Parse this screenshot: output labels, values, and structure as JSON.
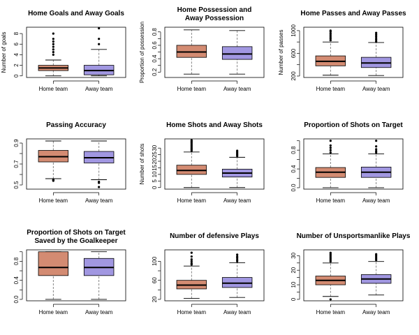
{
  "figure": {
    "background": "#ffffff",
    "home_color": "#d38b72",
    "away_color": "#a197e1"
  },
  "chart_data": [
    {
      "type": "box",
      "title": [
        "Home Goals and Away Goals"
      ],
      "ylabel": "Number of goals",
      "ylim": [
        -0.3,
        9.2
      ],
      "yticks": [
        0,
        2,
        4,
        6,
        8
      ],
      "categories": [
        "Home team",
        "Away team"
      ],
      "boxes": [
        {
          "min": 0,
          "q1": 1,
          "median": 1.5,
          "q3": 2,
          "max": 3,
          "outliers": [
            4,
            4.5,
            5,
            5.5,
            6,
            6.5,
            7,
            8
          ]
        },
        {
          "min": 0,
          "q1": 0.2,
          "median": 1,
          "q3": 2,
          "max": 5,
          "outliers": [
            6,
            7,
            9
          ]
        }
      ]
    },
    {
      "type": "box",
      "title": [
        "Home Possession and",
        "Away Possession"
      ],
      "ylabel": "Proportion of possession",
      "ylim": [
        0.12,
        0.87
      ],
      "yticks": [
        0.2,
        0.3,
        0.4,
        0.5,
        0.6,
        0.7,
        0.8
      ],
      "ytick_labels": [
        "0.2",
        "",
        "0.4",
        "",
        "0.6",
        "",
        "0.8"
      ],
      "categories": [
        "Home team",
        "Away team"
      ],
      "boxes": [
        {
          "min": 0.17,
          "q1": 0.42,
          "median": 0.5,
          "q3": 0.6,
          "max": 0.83,
          "outliers": []
        },
        {
          "min": 0.17,
          "q1": 0.39,
          "median": 0.47,
          "q3": 0.58,
          "max": 0.82,
          "outliers": []
        }
      ]
    },
    {
      "type": "box",
      "title": [
        "Home Passes and Away Passes"
      ],
      "ylabel": "Number of passes",
      "ylim": [
        175,
        1060
      ],
      "yticks": [
        200,
        400,
        600,
        800,
        1000
      ],
      "ytick_labels": [
        "200",
        "",
        "600",
        "",
        "1000"
      ],
      "categories": [
        "Home team",
        "Away team"
      ],
      "boxes": [
        {
          "min": 215,
          "q1": 380,
          "median": 460,
          "q3": 555,
          "max": 800,
          "outliers": [
            830,
            860,
            890,
            920,
            950,
            980,
            1000
          ]
        },
        {
          "min": 210,
          "q1": 350,
          "median": 430,
          "q3": 530,
          "max": 790,
          "outliers": [
            810,
            840,
            870,
            900,
            930,
            960
          ]
        }
      ]
    },
    {
      "type": "box",
      "title": [
        "Passing Accuracy"
      ],
      "ylabel": "",
      "ylim": [
        0.46,
        0.94
      ],
      "yticks": [
        0.5,
        0.6,
        0.7,
        0.8,
        0.9
      ],
      "ytick_labels": [
        "0.5",
        "",
        "0.7",
        "",
        "0.9"
      ],
      "categories": [
        "Home team",
        "Away team"
      ],
      "boxes": [
        {
          "min": 0.56,
          "q1": 0.72,
          "median": 0.77,
          "q3": 0.83,
          "max": 0.92,
          "outliers": [
            0.54,
            0.545,
            0.55
          ]
        },
        {
          "min": 0.55,
          "q1": 0.71,
          "median": 0.76,
          "q3": 0.82,
          "max": 0.92,
          "outliers": [
            0.48,
            0.52,
            0.53
          ]
        }
      ]
    },
    {
      "type": "box",
      "title": [
        "Home Shots and Away Shots"
      ],
      "ylabel": "Number of shots",
      "ylim": [
        -1.2,
        37
      ],
      "yticks": [
        0,
        5,
        10,
        15,
        20,
        25,
        30
      ],
      "categories": [
        "Home team",
        "Away team"
      ],
      "boxes": [
        {
          "min": 0,
          "q1": 10,
          "median": 13,
          "q3": 17,
          "max": 27,
          "outliers": [
            28,
            29,
            30,
            31,
            32,
            33,
            34,
            35,
            36
          ]
        },
        {
          "min": 0,
          "q1": 8,
          "median": 11,
          "q3": 14,
          "max": 23,
          "outliers": [
            24,
            25,
            26,
            27,
            28
          ]
        }
      ]
    },
    {
      "type": "box",
      "title": [
        "Proportion of Shots on Target"
      ],
      "ylabel": "",
      "ylim": [
        -0.03,
        1.04
      ],
      "yticks": [
        0,
        0.2,
        0.4,
        0.6,
        0.8,
        1.0
      ],
      "ytick_labels": [
        "0.0",
        "",
        "0.4",
        "",
        "0.8",
        ""
      ],
      "categories": [
        "Home team",
        "Away team"
      ],
      "boxes": [
        {
          "min": 0,
          "q1": 0.22,
          "median": 0.33,
          "q3": 0.43,
          "max": 0.72,
          "outliers": [
            0.75,
            0.8,
            0.85,
            0.9,
            1.0
          ]
        },
        {
          "min": 0,
          "q1": 0.22,
          "median": 0.33,
          "q3": 0.44,
          "max": 0.72,
          "outliers": [
            0.75,
            0.78,
            0.82,
            0.88,
            1.0
          ]
        }
      ]
    },
    {
      "type": "box",
      "title": [
        "Proportion of Shots on Target",
        "Saved by the Goalkeeper"
      ],
      "ylabel": "",
      "ylim": [
        -0.03,
        1.04
      ],
      "yticks": [
        0,
        0.2,
        0.4,
        0.6,
        0.8,
        1.0
      ],
      "ytick_labels": [
        "0.0",
        "",
        "0.4",
        "",
        "0.8",
        ""
      ],
      "categories": [
        "Home team",
        "Away team"
      ],
      "boxes": [
        {
          "min": 0,
          "q1": 0.5,
          "median": 0.67,
          "q3": 1.0,
          "max": 1.0,
          "outliers": []
        },
        {
          "min": 0,
          "q1": 0.5,
          "median": 0.67,
          "q3": 0.86,
          "max": 1.0,
          "outliers": []
        }
      ]
    },
    {
      "type": "box",
      "title": [
        "Number of defensive Plays"
      ],
      "ylabel": "",
      "ylim": [
        17,
        124
      ],
      "yticks": [
        20,
        40,
        60,
        80,
        100
      ],
      "ytick_labels": [
        "20",
        "",
        "60",
        "",
        "100"
      ],
      "categories": [
        "Home team",
        "Away team"
      ],
      "boxes": [
        {
          "min": 22,
          "q1": 42,
          "median": 50,
          "q3": 60,
          "max": 90,
          "outliers": [
            93,
            96,
            100,
            104,
            110,
            118
          ]
        },
        {
          "min": 24,
          "q1": 45,
          "median": 54,
          "q3": 66,
          "max": 97,
          "outliers": [
            100,
            103,
            107,
            110,
            114
          ]
        }
      ]
    },
    {
      "type": "box",
      "title": [
        "Number of Unsportsmanlike Plays"
      ],
      "ylabel": "",
      "ylim": [
        -1,
        34
      ],
      "yticks": [
        0,
        5,
        10,
        15,
        20,
        25,
        30
      ],
      "ytick_labels": [
        "0",
        "",
        "10",
        "",
        "20",
        "",
        "30"
      ],
      "categories": [
        "Home team",
        "Away team"
      ],
      "boxes": [
        {
          "min": 2,
          "q1": 10,
          "median": 13,
          "q3": 16,
          "max": 25,
          "outliers": [
            0,
            26,
            27,
            28,
            29,
            30,
            31,
            32
          ]
        },
        {
          "min": 3,
          "q1": 11,
          "median": 14,
          "q3": 17,
          "max": 26,
          "outliers": [
            27,
            28,
            29,
            30,
            31
          ]
        }
      ]
    }
  ]
}
